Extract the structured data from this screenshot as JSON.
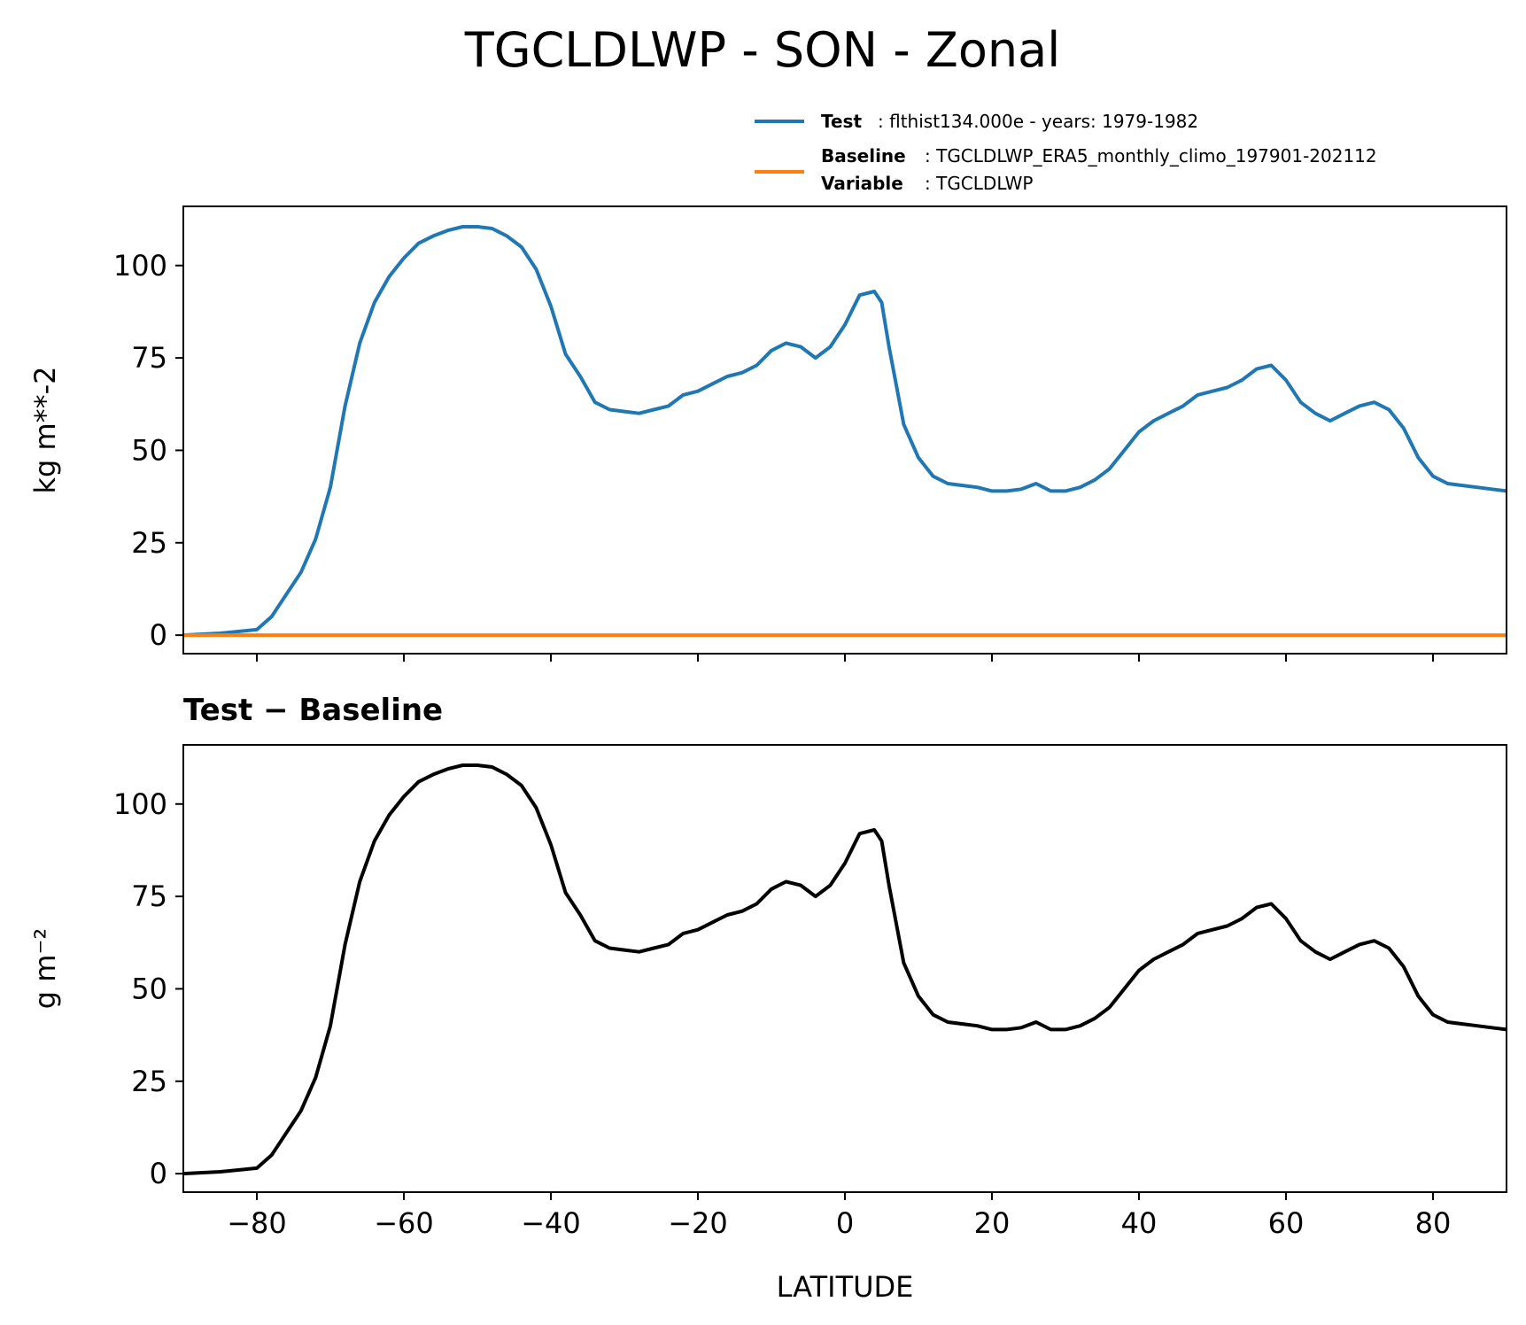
{
  "figure": {
    "title": "TGCLDLWP - SON - Zonal"
  },
  "legend": {
    "test_label": "Test",
    "test_text": ": flthist134.000e - years: 1979-1982",
    "baseline_label": "Baseline",
    "baseline_text": ": TGCLDLWP_ERA5_monthly_climo_197901-202112",
    "variable_label": "Variable",
    "variable_text": ": TGCLDLWP"
  },
  "colors": {
    "test": "#1f77b4",
    "baseline": "#ff7f0e",
    "difference": "#000000"
  },
  "chart_data": [
    {
      "type": "line",
      "ylabel": "kg m**-2",
      "xlim": [
        -90,
        90
      ],
      "ylim": [
        -5,
        116
      ],
      "yticks": [
        0,
        25,
        50,
        75,
        100
      ],
      "xticks": [
        -80,
        -60,
        -40,
        -20,
        0,
        20,
        40,
        60,
        80
      ],
      "legend_position": "above-right",
      "series": [
        {
          "name": "Test",
          "x": [
            -90,
            -85,
            -80,
            -78,
            -76,
            -74,
            -72,
            -70,
            -68,
            -66,
            -64,
            -62,
            -60,
            -58,
            -56,
            -54,
            -52,
            -50,
            -48,
            -47,
            -46,
            -44,
            -42,
            -40,
            -38,
            -36,
            -34,
            -32,
            -30,
            -28,
            -26,
            -24,
            -22,
            -20,
            -18,
            -16,
            -14,
            -12,
            -10,
            -8,
            -6,
            -4,
            -2,
            0,
            2,
            4,
            5,
            6,
            8,
            10,
            12,
            14,
            16,
            18,
            20,
            22,
            24,
            26,
            28,
            30,
            32,
            34,
            36,
            38,
            40,
            42,
            44,
            46,
            48,
            50,
            52,
            54,
            56,
            58,
            60,
            62,
            64,
            66,
            68,
            70,
            72,
            74,
            76,
            78,
            80,
            82,
            84,
            86,
            88,
            90
          ],
          "values": [
            0,
            0.5,
            1.5,
            5,
            11,
            17,
            26,
            40,
            62,
            79,
            90,
            97,
            102,
            106,
            108,
            109.5,
            110.5,
            110.5,
            110,
            109,
            108,
            105,
            99,
            89,
            76,
            70,
            63,
            61,
            60.5,
            60,
            61,
            62,
            65,
            66,
            68,
            70,
            71,
            73,
            77,
            79,
            78,
            75,
            78,
            84,
            92,
            93,
            90,
            78,
            57,
            48,
            43,
            41,
            40.5,
            40,
            39,
            39,
            39.5,
            41,
            39,
            39,
            40,
            42,
            45,
            50,
            55,
            58,
            60,
            62,
            65,
            66,
            67,
            69,
            72,
            73,
            69,
            63,
            60,
            58,
            60,
            62,
            63,
            61,
            56,
            48,
            43,
            41,
            40.5,
            40,
            39.5,
            39
          ]
        },
        {
          "name": "Baseline",
          "x": [
            -90,
            90
          ],
          "values": [
            0,
            0
          ]
        }
      ]
    },
    {
      "type": "line",
      "title": "Test − Baseline",
      "ylabel": "g m⁻²",
      "xlabel": "LATITUDE",
      "xlim": [
        -90,
        90
      ],
      "ylim": [
        -5,
        116
      ],
      "yticks": [
        0,
        25,
        50,
        75,
        100
      ],
      "xticks": [
        -80,
        -60,
        -40,
        -20,
        0,
        20,
        40,
        60,
        80
      ],
      "series": [
        {
          "x": [
            -90,
            -85,
            -80,
            -78,
            -76,
            -74,
            -72,
            -70,
            -68,
            -66,
            -64,
            -62,
            -60,
            -58,
            -56,
            -54,
            -52,
            -50,
            -48,
            -47,
            -46,
            -44,
            -42,
            -40,
            -38,
            -36,
            -34,
            -32,
            -30,
            -28,
            -26,
            -24,
            -22,
            -20,
            -18,
            -16,
            -14,
            -12,
            -10,
            -8,
            -6,
            -4,
            -2,
            0,
            2,
            4,
            5,
            6,
            8,
            10,
            12,
            14,
            16,
            18,
            20,
            22,
            24,
            26,
            28,
            30,
            32,
            34,
            36,
            38,
            40,
            42,
            44,
            46,
            48,
            50,
            52,
            54,
            56,
            58,
            60,
            62,
            64,
            66,
            68,
            70,
            72,
            74,
            76,
            78,
            80,
            82,
            84,
            86,
            88,
            90
          ],
          "values": [
            0,
            0.5,
            1.5,
            5,
            11,
            17,
            26,
            40,
            62,
            79,
            90,
            97,
            102,
            106,
            108,
            109.5,
            110.5,
            110.5,
            110,
            109,
            108,
            105,
            99,
            89,
            76,
            70,
            63,
            61,
            60.5,
            60,
            61,
            62,
            65,
            66,
            68,
            70,
            71,
            73,
            77,
            79,
            78,
            75,
            78,
            84,
            92,
            93,
            90,
            78,
            57,
            48,
            43,
            41,
            40.5,
            40,
            39,
            39,
            39.5,
            41,
            39,
            39,
            40,
            42,
            45,
            50,
            55,
            58,
            60,
            62,
            65,
            66,
            67,
            69,
            72,
            73,
            69,
            63,
            60,
            58,
            60,
            62,
            63,
            61,
            56,
            48,
            43,
            41,
            40.5,
            40,
            39.5,
            39
          ]
        }
      ]
    }
  ]
}
